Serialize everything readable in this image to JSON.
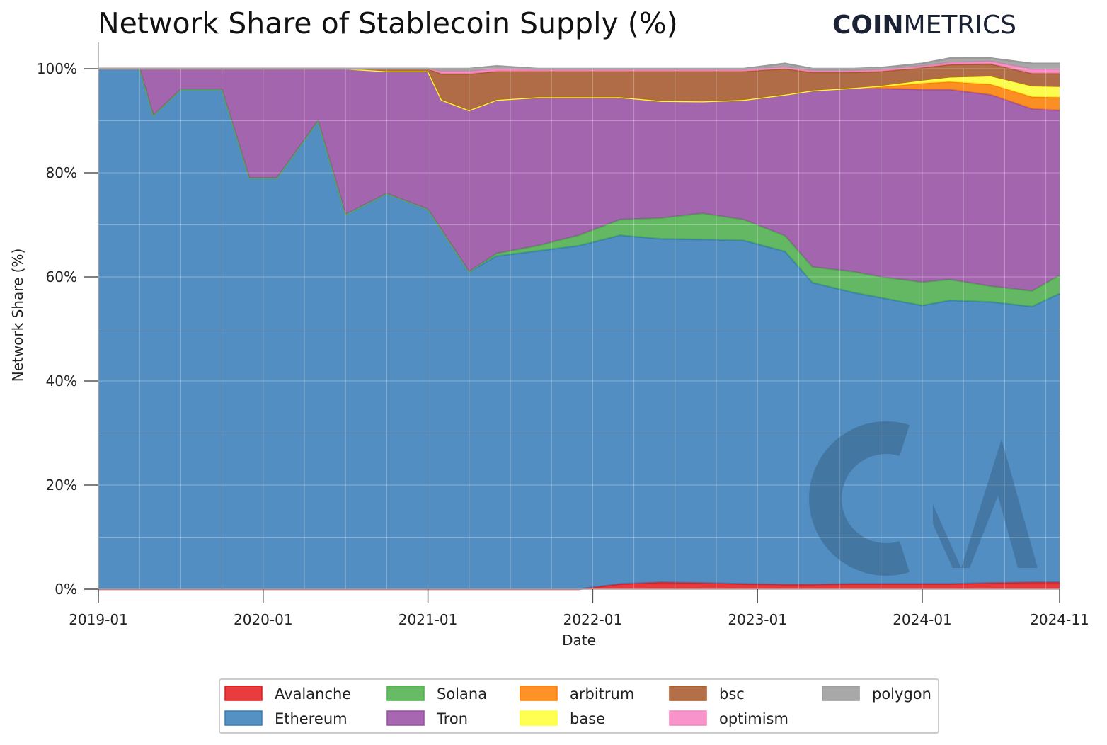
{
  "chart_data": {
    "type": "area",
    "stacked": true,
    "normalized": true,
    "title": "Network Share of Stablecoin Supply (%)",
    "brand": {
      "bold": "COIN",
      "light": "METRICS"
    },
    "xlabel": "Date",
    "ylabel": "Network Share (%)",
    "ylim": [
      0,
      100
    ],
    "xlim": [
      "2019-01",
      "2024-11"
    ],
    "y_ticks": [
      "0%",
      "20%",
      "40%",
      "60%",
      "80%",
      "100%"
    ],
    "y_tick_values": [
      0,
      20,
      40,
      60,
      80,
      100
    ],
    "x_ticks": [
      "2019-01",
      "2020-01",
      "2021-01",
      "2022-01",
      "2023-01",
      "2024-01",
      "2024-11"
    ],
    "grid": true,
    "legend_position": "bottom",
    "x": [
      "2019-01",
      "2019-04",
      "2019-05",
      "2019-07",
      "2019-10",
      "2019-12",
      "2020-02",
      "2020-05",
      "2020-07",
      "2020-10",
      "2021-01",
      "2021-02",
      "2021-04",
      "2021-06",
      "2021-09",
      "2021-12",
      "2022-03",
      "2022-06",
      "2022-09",
      "2022-12",
      "2023-03",
      "2023-05",
      "2023-08",
      "2023-10",
      "2024-01",
      "2024-03",
      "2024-06",
      "2024-09",
      "2024-11"
    ],
    "series": [
      {
        "name": "Avalanche",
        "color": "#e41a1c",
        "values": [
          0,
          0,
          0,
          0,
          0,
          0,
          0,
          0,
          0,
          0,
          0,
          0,
          0,
          0,
          0,
          0,
          1.0,
          1.3,
          1.2,
          1.0,
          0.9,
          0.9,
          1.0,
          1.0,
          1.0,
          1.0,
          1.2,
          1.3,
          1.3
        ]
      },
      {
        "name": "Ethereum",
        "color": "#377eb8",
        "values": [
          100,
          100,
          91,
          96,
          96,
          79,
          79,
          90,
          72,
          76,
          73,
          69,
          61,
          64,
          65,
          66,
          67,
          66,
          66,
          66,
          64,
          58,
          56,
          55,
          53.5,
          54.5,
          54,
          53,
          55.5
        ]
      },
      {
        "name": "Solana",
        "color": "#4daf4a",
        "values": [
          0,
          0,
          0,
          0,
          0,
          0,
          0,
          0,
          0,
          0,
          0,
          0,
          0,
          0.5,
          1,
          2,
          3,
          4,
          5,
          4,
          3,
          3,
          4,
          4,
          4.5,
          4,
          3,
          3,
          3.5
        ]
      },
      {
        "name": "Tron",
        "color": "#984ea3",
        "values": [
          0,
          0,
          9,
          4,
          4,
          21,
          21,
          10,
          28,
          23.5,
          26.5,
          25,
          31,
          29.5,
          28.5,
          26.5,
          23.5,
          22.5,
          21.5,
          23,
          27.1,
          33.9,
          35.3,
          36.2,
          37,
          36.5,
          36.8,
          35,
          31.7
        ]
      },
      {
        "name": "arbitrum",
        "color": "#ff7f00",
        "values": [
          0,
          0,
          0,
          0,
          0,
          0,
          0,
          0,
          0,
          0,
          0,
          0,
          0,
          0,
          0,
          0,
          0,
          0,
          0,
          0,
          0,
          0,
          0,
          0.3,
          1.2,
          1.5,
          2,
          2.3,
          2.5
        ]
      },
      {
        "name": "base",
        "color": "#ffff33",
        "values": [
          0,
          0,
          0,
          0,
          0,
          0,
          0,
          0,
          0,
          0,
          0,
          0,
          0,
          0,
          0,
          0,
          0,
          0,
          0,
          0,
          0,
          0,
          0,
          0.2,
          0.5,
          0.8,
          1.5,
          2.0,
          2.0
        ]
      },
      {
        "name": "bsc",
        "color": "#a65628",
        "values": [
          0,
          0,
          0,
          0,
          0,
          0,
          0,
          0,
          0,
          0.5,
          0.5,
          5,
          7,
          5.5,
          5,
          5,
          5,
          5.7,
          5.8,
          5.5,
          5,
          3.5,
          3,
          2.8,
          2.5,
          2.5,
          2.4,
          2.5,
          2.6
        ]
      },
      {
        "name": "optimism",
        "color": "#f781bf",
        "values": [
          0,
          0,
          0,
          0,
          0,
          0,
          0,
          0,
          0,
          0,
          0,
          0.5,
          0.5,
          0.5,
          0.3,
          0.3,
          0.3,
          0.3,
          0.3,
          0.3,
          0.3,
          0.3,
          0.3,
          0.3,
          0.3,
          0.4,
          0.5,
          0.8,
          0.8
        ]
      },
      {
        "name": "polygon",
        "color": "#999999",
        "values": [
          0,
          0,
          0,
          0,
          0,
          0,
          0,
          0,
          0,
          0,
          0,
          0.5,
          0.5,
          0.5,
          0.2,
          0.2,
          0.2,
          0.2,
          0.2,
          0.2,
          0.7,
          0.4,
          0.4,
          0.4,
          0.5,
          0.8,
          0.6,
          1.1,
          1.1
        ]
      }
    ],
    "legend_order": [
      "Avalanche",
      "Solana",
      "arbitrum",
      "bsc",
      "polygon",
      "Ethereum",
      "Tron",
      "base",
      "optimism"
    ]
  }
}
